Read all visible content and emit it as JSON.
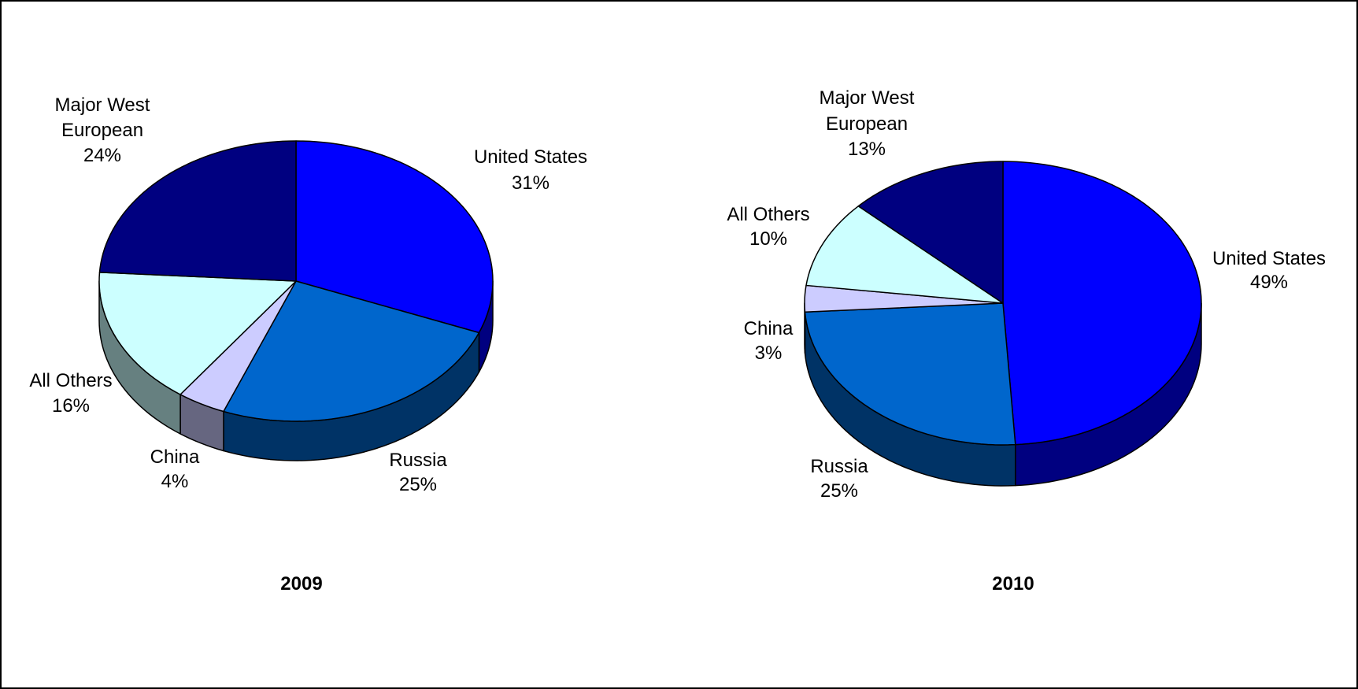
{
  "chart_data": [
    {
      "type": "pie",
      "title": "2009",
      "start_angle_deg": 0,
      "direction": "clockwise",
      "three_d": true,
      "slices": [
        {
          "label": "United States",
          "value": 31,
          "value_label": "31%",
          "color": "#0000FF"
        },
        {
          "label": "Russia",
          "value": 25,
          "value_label": "25%",
          "color": "#0066CC"
        },
        {
          "label": "China",
          "value": 4,
          "value_label": "4%",
          "color": "#CCCCFF"
        },
        {
          "label": "All Others",
          "value": 16,
          "value_label": "16%",
          "color": "#CCFFFF"
        },
        {
          "label": "Major West European",
          "value": 24,
          "value_label": "24%",
          "color": "#000080"
        }
      ]
    },
    {
      "type": "pie",
      "title": "2010",
      "start_angle_deg": 0,
      "direction": "clockwise",
      "three_d": true,
      "slices": [
        {
          "label": "United States",
          "value": 49,
          "value_label": "49%",
          "color": "#0000FF"
        },
        {
          "label": "Russia",
          "value": 25,
          "value_label": "25%",
          "color": "#0066CC"
        },
        {
          "label": "China",
          "value": 3,
          "value_label": "3%",
          "color": "#CCCCFF"
        },
        {
          "label": "All Others",
          "value": 10,
          "value_label": "10%",
          "color": "#CCFFFF"
        },
        {
          "label": "Major West European",
          "value": 13,
          "value_label": "13%",
          "color": "#000080"
        }
      ]
    }
  ],
  "colors": {
    "frame": "#000000",
    "edge": "#000000",
    "background": "#FFFFFF"
  }
}
